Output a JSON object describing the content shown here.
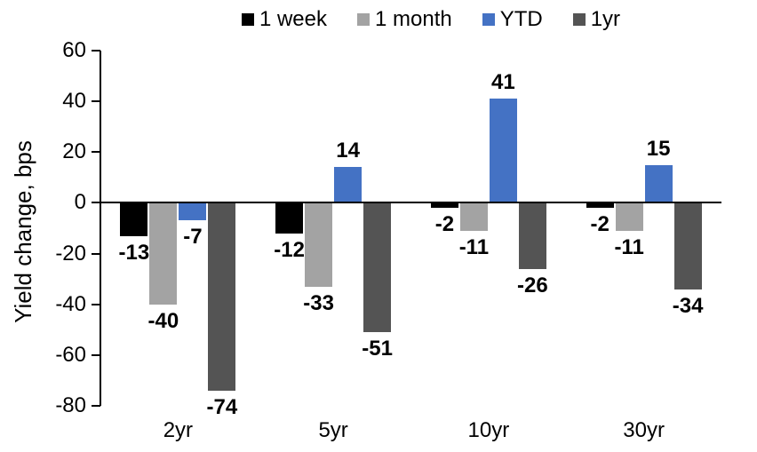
{
  "chart_data": {
    "type": "bar",
    "title": "",
    "ylabel": "Yield change, bps",
    "xlabel": "",
    "categories": [
      "2yr",
      "5yr",
      "10yr",
      "30yr"
    ],
    "series": [
      {
        "name": "1 week",
        "color": "#000000",
        "values": [
          -13,
          -12,
          -2,
          -2
        ]
      },
      {
        "name": "1 month",
        "color": "#A3A3A3",
        "values": [
          -40,
          -33,
          -11,
          -11
        ]
      },
      {
        "name": "YTD",
        "color": "#4472C4",
        "values": [
          -7,
          14,
          41,
          15
        ]
      },
      {
        "name": "1yr",
        "color": "#545454",
        "values": [
          -74,
          -51,
          -26,
          -34
        ]
      }
    ],
    "yticks": [
      60,
      40,
      20,
      0,
      -20,
      -40,
      -60,
      -80
    ],
    "ylim": [
      -80,
      60
    ],
    "grid": false,
    "legend_position": "top",
    "data_labels": "outside-end",
    "axis_color": "#000000",
    "background_color": "#FFFFFF"
  }
}
